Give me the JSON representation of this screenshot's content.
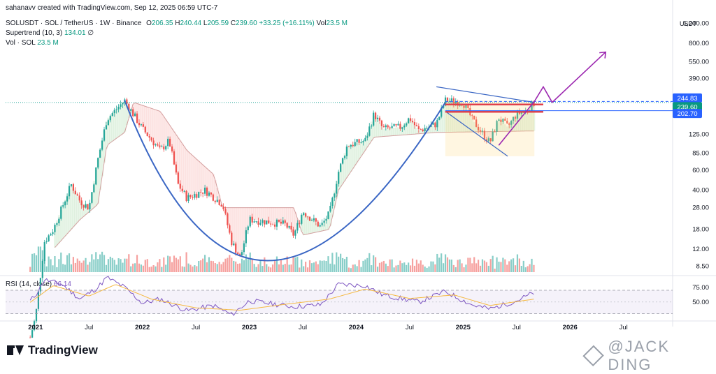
{
  "credit": "sahanavv created with TradingView.com, Sep 12, 2025 06:59 UTC-7",
  "legend": {
    "symbol": "SOLUSDT · SOL / TetherUS · 1W · Binance",
    "o_label": "O",
    "o_value": "206.35",
    "h_label": "H",
    "h_value": "240.44",
    "l_label": "L",
    "l_value": "205.59",
    "c_label": "C",
    "c_value": "239.60",
    "change": "+33.25 (+16.11%)",
    "vol_label": "Vol",
    "vol_value": "23.5 M",
    "supertrend_label": "Supertrend (10, 3)",
    "supertrend_value": "134.01",
    "supertrend_extra": "∅",
    "vol2_label": "Vol · SOL",
    "vol2_value": "23.5 M"
  },
  "rsi_legend": {
    "label": "RSI (14, close)",
    "value": "66.14"
  },
  "currency": "USDT",
  "price_ticks": [
    "1,200.00",
    "800.00",
    "550.00",
    "390.00",
    "125.00",
    "85.00",
    "60.00",
    "40.00",
    "28.00",
    "18.00",
    "12.00",
    "8.50"
  ],
  "price_tags": [
    {
      "text": "244.83",
      "color": "#2962ff"
    },
    {
      "text": "239.60",
      "color": "#089981"
    },
    {
      "text": "202.70",
      "color": "#2962ff"
    }
  ],
  "rsi_ticks": [
    "75.00",
    "50.00"
  ],
  "time_labels": [
    "2021",
    "Jul",
    "2022",
    "Jul",
    "2023",
    "Jul",
    "2024",
    "Jul",
    "2025",
    "Jul",
    "2026",
    "Jul"
  ],
  "brand": "TradingView",
  "watermark": "@JACK DING",
  "colors": {
    "up": "#26a69a",
    "down": "#ef5350",
    "trend_line": "#3a66c4",
    "projection": "#9c27b0",
    "resistance": "#e0404a"
  },
  "chart_data": {
    "type": "candlestick",
    "title": "SOLUSDT · SOL / TetherUS · 1W · Binance",
    "scale": "log",
    "ylim": [
      7,
      1500
    ],
    "yticks": [
      1200,
      800,
      550,
      390,
      125,
      85,
      60,
      40,
      28,
      18,
      12,
      8.5
    ],
    "keypoints": [
      {
        "t": "2020-12",
        "price": 1.5
      },
      {
        "t": "2021-01",
        "price": 3
      },
      {
        "t": "2021-02",
        "price": 14
      },
      {
        "t": "2021-03",
        "price": 18
      },
      {
        "t": "2021-05",
        "price": 45
      },
      {
        "t": "2021-06",
        "price": 32
      },
      {
        "t": "2021-07",
        "price": 28
      },
      {
        "t": "2021-08",
        "price": 75
      },
      {
        "t": "2021-09",
        "price": 170
      },
      {
        "t": "2021-11",
        "price": 250
      },
      {
        "t": "2022-01",
        "price": 140
      },
      {
        "t": "2022-03",
        "price": 90
      },
      {
        "t": "2022-04",
        "price": 110
      },
      {
        "t": "2022-05",
        "price": 45
      },
      {
        "t": "2022-06",
        "price": 34
      },
      {
        "t": "2022-08",
        "price": 40
      },
      {
        "t": "2022-10",
        "price": 30
      },
      {
        "t": "2022-11",
        "price": 14
      },
      {
        "t": "2022-12",
        "price": 10
      },
      {
        "t": "2023-01",
        "price": 22
      },
      {
        "t": "2023-03",
        "price": 21
      },
      {
        "t": "2023-05",
        "price": 20
      },
      {
        "t": "2023-06",
        "price": 16
      },
      {
        "t": "2023-07",
        "price": 26
      },
      {
        "t": "2023-09",
        "price": 19
      },
      {
        "t": "2023-10",
        "price": 25
      },
      {
        "t": "2023-11",
        "price": 58
      },
      {
        "t": "2023-12",
        "price": 100
      },
      {
        "t": "2024-02",
        "price": 110
      },
      {
        "t": "2024-03",
        "price": 190
      },
      {
        "t": "2024-04",
        "price": 140
      },
      {
        "t": "2024-06",
        "price": 145
      },
      {
        "t": "2024-07",
        "price": 175
      },
      {
        "t": "2024-08",
        "price": 135
      },
      {
        "t": "2024-10",
        "price": 155
      },
      {
        "t": "2024-11",
        "price": 250
      },
      {
        "t": "2025-01",
        "price": 240
      },
      {
        "t": "2025-02",
        "price": 170
      },
      {
        "t": "2025-04",
        "price": 105
      },
      {
        "t": "2025-05",
        "price": 175
      },
      {
        "t": "2025-06",
        "price": 145
      },
      {
        "t": "2025-07",
        "price": 190
      },
      {
        "t": "2025-08",
        "price": 200
      },
      {
        "t": "2025-09",
        "price": 239.6
      }
    ],
    "supertrend": [
      {
        "t": "2021-03",
        "price": 12
      },
      {
        "t": "2021-06",
        "price": 22
      },
      {
        "t": "2021-08",
        "price": 30
      },
      {
        "t": "2021-09",
        "price": 100
      },
      {
        "t": "2021-11",
        "price": 130
      },
      {
        "t": "2021-12",
        "price": 240
      },
      {
        "t": "2022-03",
        "price": 200
      },
      {
        "t": "2022-06",
        "price": 90
      },
      {
        "t": "2022-09",
        "price": 55
      },
      {
        "t": "2022-10",
        "price": 28
      },
      {
        "t": "2023-06",
        "price": 28
      },
      {
        "t": "2023-07",
        "price": 16
      },
      {
        "t": "2023-10",
        "price": 18
      },
      {
        "t": "2023-11",
        "price": 40
      },
      {
        "t": "2024-03",
        "price": 118
      },
      {
        "t": "2024-10",
        "price": 130
      },
      {
        "t": "2025-09",
        "price": 134.01
      }
    ],
    "drawings": {
      "cup_curve": [
        {
          "t": "2021-11",
          "price": 250
        },
        {
          "t": "2023-03",
          "price": 9.5
        },
        {
          "t": "2024-11",
          "price": 240
        }
      ],
      "resistance_lines": [
        230,
        198
      ],
      "projection": [
        {
          "t": "2025-05",
          "price": 100
        },
        {
          "t": "2025-09",
          "price": 245
        },
        {
          "t": "2025-10",
          "price": 330
        },
        {
          "t": "2025-11",
          "price": 240
        },
        {
          "t": "2026-05",
          "price": 670
        }
      ],
      "channel_top": [
        {
          "t": "2024-10",
          "price": 330
        },
        {
          "t": "2025-09",
          "price": 240
        }
      ],
      "channel_bottom": [
        {
          "t": "2024-11",
          "price": 200
        },
        {
          "t": "2025-06",
          "price": 80
        }
      ]
    },
    "rsi": {
      "label": "RSI (14, close)",
      "last": 66.14,
      "ylim": [
        20,
        95
      ],
      "bands": [
        70,
        30
      ],
      "points": [
        {
          "t": "2020-12",
          "v": 45
        },
        {
          "t": "2021-01",
          "v": 62
        },
        {
          "t": "2021-02",
          "v": 88
        },
        {
          "t": "2021-04",
          "v": 80
        },
        {
          "t": "2021-06",
          "v": 55
        },
        {
          "t": "2021-08",
          "v": 75
        },
        {
          "t": "2021-09",
          "v": 92
        },
        {
          "t": "2021-11",
          "v": 75
        },
        {
          "t": "2022-01",
          "v": 48
        },
        {
          "t": "2022-03",
          "v": 55
        },
        {
          "t": "2022-06",
          "v": 35
        },
        {
          "t": "2022-09",
          "v": 44
        },
        {
          "t": "2022-11",
          "v": 28
        },
        {
          "t": "2023-01",
          "v": 52
        },
        {
          "t": "2023-06",
          "v": 42
        },
        {
          "t": "2023-09",
          "v": 45
        },
        {
          "t": "2023-11",
          "v": 80
        },
        {
          "t": "2024-02",
          "v": 78
        },
        {
          "t": "2024-04",
          "v": 62
        },
        {
          "t": "2024-08",
          "v": 50
        },
        {
          "t": "2024-11",
          "v": 68
        },
        {
          "t": "2025-02",
          "v": 45
        },
        {
          "t": "2025-04",
          "v": 38
        },
        {
          "t": "2025-07",
          "v": 52
        },
        {
          "t": "2025-09",
          "v": 66.14
        }
      ],
      "signal": [
        {
          "t": "2020-12",
          "v": 45
        },
        {
          "t": "2021-03",
          "v": 78
        },
        {
          "t": "2021-07",
          "v": 60
        },
        {
          "t": "2021-10",
          "v": 80
        },
        {
          "t": "2022-02",
          "v": 55
        },
        {
          "t": "2022-07",
          "v": 40
        },
        {
          "t": "2022-12",
          "v": 36
        },
        {
          "t": "2023-05",
          "v": 46
        },
        {
          "t": "2023-10",
          "v": 55
        },
        {
          "t": "2024-02",
          "v": 72
        },
        {
          "t": "2024-07",
          "v": 56
        },
        {
          "t": "2024-12",
          "v": 62
        },
        {
          "t": "2025-04",
          "v": 44
        },
        {
          "t": "2025-09",
          "v": 55
        }
      ]
    }
  }
}
